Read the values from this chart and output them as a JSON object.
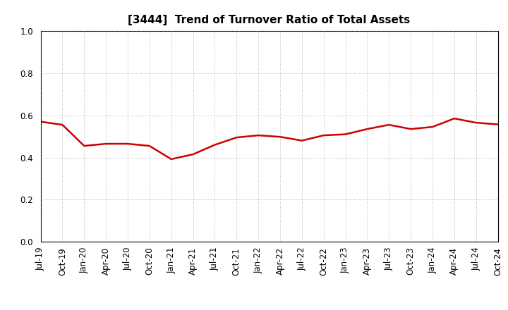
{
  "title": "[3444]  Trend of Turnover Ratio of Total Assets",
  "x_labels": [
    "Jul-19",
    "Oct-19",
    "Jan-20",
    "Apr-20",
    "Jul-20",
    "Oct-20",
    "Jan-21",
    "Apr-21",
    "Jul-21",
    "Oct-21",
    "Jan-22",
    "Apr-22",
    "Jul-22",
    "Oct-22",
    "Jan-23",
    "Apr-23",
    "Jul-23",
    "Oct-23",
    "Jan-24",
    "Apr-24",
    "Jul-24",
    "Oct-24"
  ],
  "y_values": [
    0.57,
    0.555,
    0.455,
    0.465,
    0.465,
    0.455,
    0.392,
    0.415,
    0.46,
    0.495,
    0.505,
    0.498,
    0.48,
    0.505,
    0.51,
    0.535,
    0.555,
    0.535,
    0.545,
    0.585,
    0.565,
    0.557
  ],
  "line_color": "#cc0000",
  "line_width": 1.8,
  "ylim": [
    0.0,
    1.0
  ],
  "yticks": [
    0.0,
    0.2,
    0.4,
    0.6,
    0.8,
    1.0
  ],
  "background_color": "#ffffff",
  "grid_color": "#888888",
  "title_fontsize": 11,
  "tick_fontsize": 8.5
}
